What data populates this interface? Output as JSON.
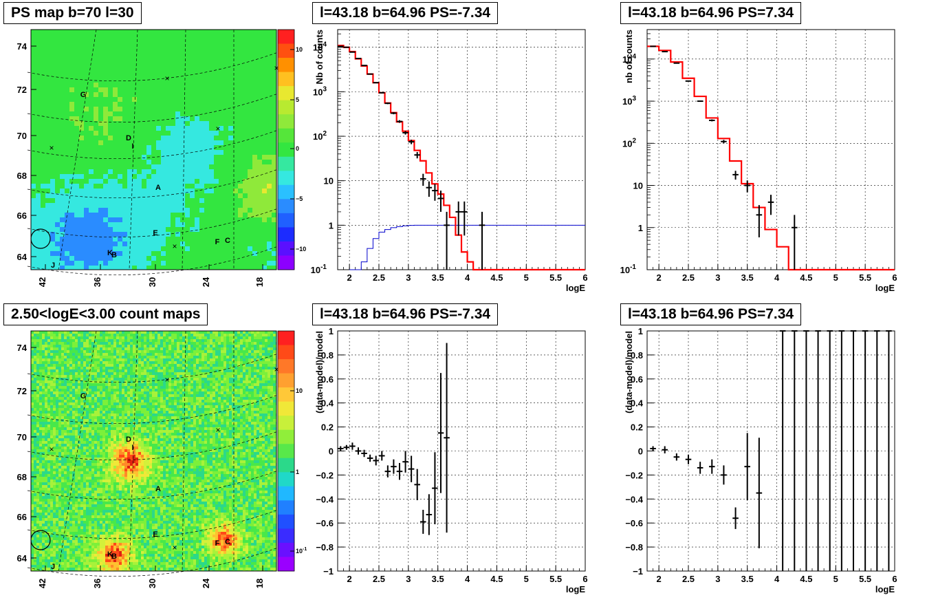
{
  "panels": {
    "ps_map_title": "PS map b=70 l=30",
    "count_map_title": "2.50<logE<3.00 count maps",
    "spec_neg_title": "l=43.18 b=64.96 PS=-7.34",
    "spec_pos_title": "l=43.18 b=64.96 PS=7.34",
    "resid_neg_title": "l=43.18 b=64.96 PS=-7.34",
    "resid_pos_title": "l=43.18 b=64.96 PS=7.34"
  },
  "colors": {
    "model": "#ff0000",
    "exposure": "#0000cc",
    "data": "#000000",
    "map_green": "#33e640"
  },
  "map_axes": {
    "y_ticks": [
      "64",
      "66",
      "68",
      "70",
      "72",
      "74"
    ],
    "x_ticks": [
      "42",
      "36",
      "30",
      "24",
      "18"
    ],
    "ps_colorbar_ticks": [
      "10",
      "5",
      "0",
      "−5",
      "−10"
    ],
    "count_colorbar_ticks": [
      "10",
      "1",
      "10"
    ],
    "count_colorbar_sup": "-1"
  },
  "map_labels": {
    "G": "G",
    "D": "D",
    "I": "I",
    "A": "A",
    "E": "E",
    "F": "F",
    "C": "C",
    "K": "K",
    "B": "B",
    "J": "J",
    "X": "×"
  },
  "chart_data": [
    {
      "type": "line",
      "title": "l=43.18 b=64.96 PS=-7.34",
      "xlabel": "logE",
      "ylabel": "Nb of counts",
      "yscale": "log",
      "xlim": [
        1.8,
        6
      ],
      "ylim": [
        0.1,
        25000
      ],
      "grid": true,
      "x_ticks": [
        "2",
        "2.5",
        "3",
        "3.5",
        "4",
        "4.5",
        "5",
        "5.5",
        "6"
      ],
      "y_ticks": [
        "10^-1",
        "1",
        "10",
        "10^2",
        "10^3",
        "10^4"
      ],
      "model_step": {
        "edges": [
          1.8,
          1.9,
          2.0,
          2.1,
          2.2,
          2.3,
          2.4,
          2.5,
          2.6,
          2.7,
          2.8,
          2.9,
          3.0,
          3.1,
          3.2,
          3.3,
          3.4,
          3.5,
          3.6,
          3.7,
          3.8,
          3.9,
          4.0,
          4.1,
          4.2,
          4.3,
          6.0
        ],
        "values": [
          11000,
          10000,
          8000,
          5500,
          3800,
          2500,
          1600,
          950,
          560,
          340,
          210,
          130,
          80,
          48,
          28,
          15,
          8.5,
          5,
          2.8,
          1.5,
          0.6,
          0.25,
          0.15,
          0.1,
          0.1,
          0.1
        ]
      },
      "exposure_step": {
        "edges": [
          2.0,
          2.1,
          2.2,
          2.3,
          2.4,
          2.5,
          2.6,
          2.7,
          2.8,
          2.9,
          3.0,
          3.1,
          3.2,
          6.0
        ],
        "values": [
          0.1,
          0.1,
          0.15,
          0.3,
          0.5,
          0.7,
          0.8,
          0.88,
          0.93,
          0.97,
          0.99,
          1,
          1
        ]
      },
      "data_points": [
        {
          "x": 1.85,
          "y": 10500
        },
        {
          "x": 1.95,
          "y": 10000
        },
        {
          "x": 2.05,
          "y": 7800
        },
        {
          "x": 2.15,
          "y": 5600
        },
        {
          "x": 2.25,
          "y": 3900
        },
        {
          "x": 2.35,
          "y": 2500
        },
        {
          "x": 2.45,
          "y": 1600
        },
        {
          "x": 2.55,
          "y": 950
        },
        {
          "x": 2.65,
          "y": 550
        },
        {
          "x": 2.75,
          "y": 330
        },
        {
          "x": 2.85,
          "y": 215
        },
        {
          "x": 2.95,
          "y": 120
        },
        {
          "x": 3.05,
          "y": 75
        },
        {
          "x": 3.15,
          "y": 38
        },
        {
          "x": 3.25,
          "y": 11
        },
        {
          "x": 3.35,
          "y": 7
        },
        {
          "x": 3.45,
          "y": 6
        },
        {
          "x": 3.55,
          "y": 4
        },
        {
          "x": 3.65,
          "y": 1
        },
        {
          "x": 3.85,
          "y": 2
        },
        {
          "x": 3.95,
          "y": 2
        },
        {
          "x": 4.25,
          "y": 1
        }
      ]
    },
    {
      "type": "line",
      "title": "l=43.18 b=64.96 PS=7.34",
      "xlabel": "logE",
      "ylabel": "nb of counts",
      "yscale": "log",
      "xlim": [
        1.8,
        6
      ],
      "ylim": [
        0.1,
        50000
      ],
      "grid": true,
      "x_ticks": [
        "2",
        "2.5",
        "3",
        "3.5",
        "4",
        "4.5",
        "5",
        "5.5",
        "6"
      ],
      "y_ticks": [
        "10^-1",
        "1",
        "10",
        "10^2",
        "10^3",
        "10^4"
      ],
      "model_step": {
        "edges": [
          1.8,
          2.0,
          2.2,
          2.4,
          2.6,
          2.8,
          3.0,
          3.2,
          3.4,
          3.6,
          3.8,
          4.0,
          4.2,
          4.3,
          6.0
        ],
        "values": [
          20000,
          16000,
          8500,
          3500,
          1300,
          400,
          130,
          38,
          11,
          3,
          0.9,
          0.35,
          0.1,
          0.1
        ]
      },
      "data_points": [
        {
          "x": 1.9,
          "y": 20000
        },
        {
          "x": 2.1,
          "y": 15000
        },
        {
          "x": 2.3,
          "y": 8000
        },
        {
          "x": 2.5,
          "y": 3000
        },
        {
          "x": 2.7,
          "y": 1000
        },
        {
          "x": 2.9,
          "y": 350
        },
        {
          "x": 3.1,
          "y": 110
        },
        {
          "x": 3.3,
          "y": 18
        },
        {
          "x": 3.5,
          "y": 10
        },
        {
          "x": 3.7,
          "y": 2
        },
        {
          "x": 3.9,
          "y": 4
        },
        {
          "x": 4.3,
          "y": 1
        }
      ]
    },
    {
      "type": "scatter",
      "title": "l=43.18 b=64.96 PS=-7.34",
      "xlabel": "logE",
      "ylabel": "(data-model)/model",
      "xlim": [
        1.8,
        6
      ],
      "ylim": [
        -1,
        1
      ],
      "grid": true,
      "x_ticks": [
        "2",
        "2.5",
        "3",
        "3.5",
        "4",
        "4.5",
        "5",
        "5.5",
        "6"
      ],
      "y_ticks": [
        "−1",
        "−0.8",
        "−0.6",
        "−0.4",
        "−0.2",
        "0",
        "0.2",
        "0.4",
        "0.6",
        "0.8",
        "1"
      ],
      "data_points": [
        {
          "x": 1.85,
          "y": 0.02,
          "err": 0.02
        },
        {
          "x": 1.95,
          "y": 0.03,
          "err": 0.02
        },
        {
          "x": 2.05,
          "y": 0.04,
          "err": 0.03
        },
        {
          "x": 2.15,
          "y": 0.0,
          "err": 0.03
        },
        {
          "x": 2.25,
          "y": -0.02,
          "err": 0.03
        },
        {
          "x": 2.35,
          "y": -0.06,
          "err": 0.03
        },
        {
          "x": 2.45,
          "y": -0.08,
          "err": 0.04
        },
        {
          "x": 2.55,
          "y": -0.04,
          "err": 0.04
        },
        {
          "x": 2.65,
          "y": -0.17,
          "err": 0.05
        },
        {
          "x": 2.75,
          "y": -0.13,
          "err": 0.06
        },
        {
          "x": 2.85,
          "y": -0.17,
          "err": 0.07
        },
        {
          "x": 2.95,
          "y": -0.09,
          "err": 0.09
        },
        {
          "x": 3.05,
          "y": -0.15,
          "err": 0.11
        },
        {
          "x": 3.15,
          "y": -0.28,
          "err": 0.13
        },
        {
          "x": 3.25,
          "y": -0.59,
          "err": 0.1
        },
        {
          "x": 3.35,
          "y": -0.53,
          "err": 0.17
        },
        {
          "x": 3.45,
          "y": -0.31,
          "err": 0.3
        },
        {
          "x": 3.55,
          "y": 0.15,
          "err": 0.5
        },
        {
          "x": 3.65,
          "y": 0.11,
          "err": 0.79
        }
      ]
    },
    {
      "type": "scatter",
      "title": "l=43.18 b=64.96 PS=7.34",
      "xlabel": "logE",
      "ylabel": "(data-model)/model",
      "xlim": [
        1.8,
        6
      ],
      "ylim": [
        -1,
        1
      ],
      "grid": true,
      "x_ticks": [
        "2",
        "2.5",
        "3",
        "3.5",
        "4",
        "4.5",
        "5",
        "5.5",
        "6"
      ],
      "y_ticks": [
        "−1",
        "−0.8",
        "−0.6",
        "−0.4",
        "−0.2",
        "0",
        "0.2",
        "0.4",
        "0.6",
        "0.8",
        "1"
      ],
      "data_points": [
        {
          "x": 1.9,
          "y": 0.02,
          "err": 0.02
        },
        {
          "x": 2.1,
          "y": 0.01,
          "err": 0.03
        },
        {
          "x": 2.3,
          "y": -0.05,
          "err": 0.03
        },
        {
          "x": 2.5,
          "y": -0.07,
          "err": 0.04
        },
        {
          "x": 2.7,
          "y": -0.14,
          "err": 0.05
        },
        {
          "x": 2.9,
          "y": -0.13,
          "err": 0.06
        },
        {
          "x": 3.1,
          "y": -0.2,
          "err": 0.08
        },
        {
          "x": 3.3,
          "y": -0.56,
          "err": 0.09
        },
        {
          "x": 3.5,
          "y": -0.13,
          "err": 0.28
        },
        {
          "x": 3.7,
          "y": -0.35,
          "err": 0.46
        },
        {
          "x": 4.1,
          "y": 1,
          "err": 2
        },
        {
          "x": 4.3,
          "y": 1,
          "err": 2
        },
        {
          "x": 4.5,
          "y": 1,
          "err": 2
        },
        {
          "x": 4.7,
          "y": 1,
          "err": 2
        },
        {
          "x": 4.9,
          "y": 1,
          "err": 2
        },
        {
          "x": 5.1,
          "y": 1,
          "err": 2
        },
        {
          "x": 5.3,
          "y": 1,
          "err": 2
        },
        {
          "x": 5.5,
          "y": 1,
          "err": 2
        },
        {
          "x": 5.7,
          "y": 1,
          "err": 2
        },
        {
          "x": 5.9,
          "y": 1,
          "err": 2
        }
      ]
    }
  ]
}
